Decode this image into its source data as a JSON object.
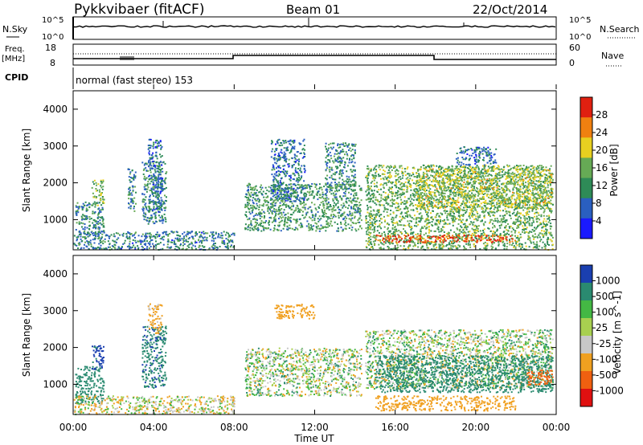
{
  "header": {
    "station": "Pykkvibaer (fitACF)",
    "beam": "Beam 01",
    "date": "22/Oct/2014"
  },
  "strip": {
    "nsky_label": "N.Sky",
    "nsky_ticks": [
      "10^5",
      "10^0"
    ],
    "nsearch_label": "N.Search",
    "nsearch_ticks": [
      "10^5",
      "10^0"
    ],
    "freq_label_1": "Freq.",
    "freq_label_2": "[MHz]",
    "freq_ticks": [
      "18",
      "8"
    ],
    "nave_label": "Nave",
    "nave_ticks": [
      "60",
      "0"
    ],
    "cpid_label": "CPID",
    "cpid_text": "normal (fast stereo) 153"
  },
  "x_axis": {
    "label": "Time UT",
    "ticks": [
      "00:00",
      "04:00",
      "08:00",
      "12:00",
      "16:00",
      "20:00",
      "00:00"
    ]
  },
  "chart_data": [
    {
      "type": "heatmap",
      "name": "power",
      "x": "time UT (hours)",
      "xlim": [
        0,
        24
      ],
      "ylabel": "Slant Range [km]",
      "ylim": [
        180,
        4500
      ],
      "y_ticks": [
        1000,
        2000,
        3000,
        4000
      ],
      "colorbar": {
        "label": "Power [dB]",
        "ticks": [
          "28",
          "24",
          "20",
          "16",
          "12",
          "8",
          "4"
        ],
        "range": [
          0,
          30
        ],
        "colors": [
          "#1a1aff",
          "#2a5fc0",
          "#2e8b57",
          "#66aa55",
          "#e8d020",
          "#f08010",
          "#e02010"
        ]
      },
      "scatter_regions": [
        {
          "t": [
            0.1,
            1.5
          ],
          "r": [
            500,
            1500
          ],
          "level": 10
        },
        {
          "t": [
            0.9,
            1.5
          ],
          "r": [
            1400,
            2100
          ],
          "level": 14
        },
        {
          "t": [
            2.7,
            3.1
          ],
          "r": [
            1200,
            2400
          ],
          "level": 10
        },
        {
          "t": [
            3.4,
            4.6
          ],
          "r": [
            900,
            2600
          ],
          "level": 10
        },
        {
          "t": [
            3.7,
            4.4
          ],
          "r": [
            1200,
            3200
          ],
          "level": 8
        },
        {
          "t": [
            0.0,
            8.0
          ],
          "r": [
            200,
            700
          ],
          "level": 9
        },
        {
          "t": [
            8.5,
            14.3
          ],
          "r": [
            700,
            2000
          ],
          "level": 12
        },
        {
          "t": [
            9.8,
            11.5
          ],
          "r": [
            1500,
            3200
          ],
          "level": 8
        },
        {
          "t": [
            12.5,
            14.0
          ],
          "r": [
            1800,
            3100
          ],
          "level": 10
        },
        {
          "t": [
            14.5,
            23.8
          ],
          "r": [
            200,
            2500
          ],
          "level": 14
        },
        {
          "t": [
            15.0,
            22.0
          ],
          "r": [
            400,
            600
          ],
          "level": 27
        },
        {
          "t": [
            17.0,
            23.8
          ],
          "r": [
            1300,
            2400
          ],
          "level": 17
        },
        {
          "t": [
            19.0,
            21.0
          ],
          "r": [
            2500,
            3000
          ],
          "level": 8
        }
      ]
    },
    {
      "type": "heatmap",
      "name": "velocity",
      "x": "time UT (hours)",
      "xlim": [
        0,
        24
      ],
      "ylabel": "Slant Range [km]",
      "ylim": [
        180,
        4500
      ],
      "y_ticks": [
        1000,
        2000,
        3000,
        4000
      ],
      "colorbar": {
        "label": "Velocity [m s^-1]",
        "ticks": [
          "1000",
          "500",
          "100",
          "25",
          "-25",
          "-100",
          "-500",
          "-1000"
        ],
        "colors": [
          "#1a3fb0",
          "#2a8a70",
          "#44b844",
          "#a8d050",
          "#c8c8c8",
          "#f0a020",
          "#f06010",
          "#e01010"
        ]
      },
      "scatter_regions": [
        {
          "t": [
            0.1,
            1.5
          ],
          "r": [
            500,
            1500
          ],
          "vel": 300
        },
        {
          "t": [
            0.9,
            1.5
          ],
          "r": [
            1400,
            2100
          ],
          "vel": 600
        },
        {
          "t": [
            3.4,
            4.6
          ],
          "r": [
            900,
            2600
          ],
          "vel": 400
        },
        {
          "t": [
            3.7,
            4.4
          ],
          "r": [
            2400,
            3200
          ],
          "vel": -200
        },
        {
          "t": [
            0.0,
            8.0
          ],
          "r": [
            200,
            700
          ],
          "vel": -60
        },
        {
          "t": [
            8.5,
            14.3
          ],
          "r": [
            700,
            2000
          ],
          "vel": 0
        },
        {
          "t": [
            10.0,
            12.0
          ],
          "r": [
            2800,
            3200
          ],
          "vel": -300
        },
        {
          "t": [
            14.5,
            23.8
          ],
          "r": [
            900,
            2500
          ],
          "vel": 0
        },
        {
          "t": [
            15.0,
            22.0
          ],
          "r": [
            300,
            700
          ],
          "vel": -250
        },
        {
          "t": [
            15.0,
            23.8
          ],
          "r": [
            800,
            1800
          ],
          "vel": 300
        },
        {
          "t": [
            22.5,
            23.8
          ],
          "r": [
            1000,
            1400
          ],
          "vel": -800
        }
      ]
    }
  ]
}
